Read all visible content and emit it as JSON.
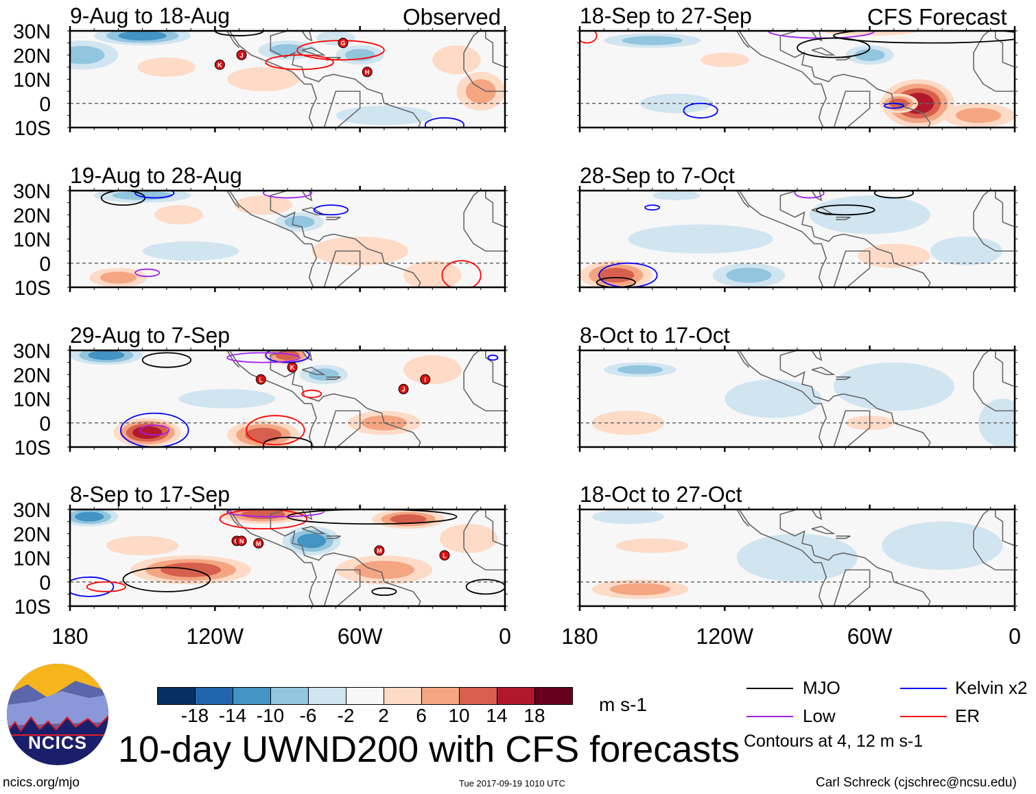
{
  "title": "10-day UWND200 with CFS forecasts",
  "left_header": "Observed",
  "right_header": "CFS Forecast",
  "site": "ncics.org/mjo",
  "timestamp": "Tue 2017-09-19 1010 UTC",
  "author": "Carl Schreck (cjschrec@ncsu.edu)",
  "logo_text": "NCICS",
  "units": "m s-1",
  "contour_note": "Contours at 4, 12 m s-1",
  "legend": [
    {
      "label": "MJO",
      "color": "#000000"
    },
    {
      "label": "Kelvin x2",
      "color": "#0000ff"
    },
    {
      "label": "Low",
      "color": "#a020f0"
    },
    {
      "label": "ER",
      "color": "#ff0000"
    }
  ],
  "colorbar": {
    "colors": [
      "#053061",
      "#2166ac",
      "#4393c3",
      "#92c5de",
      "#d1e5f0",
      "#f7f7f7",
      "#fddbc7",
      "#f4a582",
      "#d6604d",
      "#b2182b",
      "#67001f"
    ],
    "ticks": [
      "-18",
      "-14",
      "-10",
      "-6",
      "-2",
      "2",
      "6",
      "10",
      "14",
      "18"
    ]
  },
  "chart_data": {
    "type": "heatmap",
    "variable": "200-hPa zonal wind anomaly",
    "lon_ticks": [
      "180",
      "120W",
      "60W",
      "0"
    ],
    "lat_ticks": [
      "30N",
      "20N",
      "10N",
      "0",
      "10S"
    ],
    "lon_range": [
      -180,
      0
    ],
    "lat_range": [
      -10,
      30
    ],
    "panels": [
      {
        "title": "9-Aug to 18-Aug",
        "side": "left",
        "anoms": [
          [
            -150,
            28,
            -12,
            20,
            4
          ],
          [
            -175,
            20,
            -6,
            15,
            6
          ],
          [
            -90,
            22,
            -6,
            12,
            4
          ],
          [
            -60,
            20,
            -6,
            10,
            4
          ],
          [
            -140,
            15,
            4,
            12,
            4
          ],
          [
            -100,
            10,
            3,
            15,
            5
          ],
          [
            -10,
            5,
            8,
            10,
            8
          ],
          [
            -50,
            -5,
            -4,
            20,
            4
          ],
          [
            -20,
            18,
            3,
            10,
            6
          ],
          [
            -70,
            27,
            -4,
            8,
            3
          ]
        ],
        "contours": [
          [
            -68,
            22,
            18,
            4,
            "ER"
          ],
          [
            -85,
            17,
            14,
            3,
            "ER"
          ],
          [
            -110,
            30,
            10,
            2,
            "MJO"
          ],
          [
            -25,
            -9,
            8,
            3,
            "Kelvin"
          ]
        ],
        "storms": [
          [
            "G",
            -67,
            25
          ],
          [
            "J",
            -109,
            20
          ],
          [
            "K",
            -118,
            16
          ],
          [
            "H",
            -57,
            13
          ]
        ]
      },
      {
        "title": "19-Aug to 28-Aug",
        "side": "left",
        "anoms": [
          [
            -150,
            28,
            -8,
            20,
            3
          ],
          [
            -135,
            20,
            5,
            10,
            4
          ],
          [
            -100,
            24,
            4,
            12,
            4
          ],
          [
            -85,
            17,
            -6,
            10,
            4
          ],
          [
            -160,
            -6,
            6,
            12,
            4
          ],
          [
            -60,
            5,
            3,
            20,
            6
          ],
          [
            -30,
            -5,
            5,
            12,
            6
          ],
          [
            -130,
            5,
            -4,
            20,
            4
          ]
        ],
        "contours": [
          [
            -158,
            27,
            9,
            3,
            "MJO"
          ],
          [
            -145,
            29,
            8,
            2,
            "Kelvin"
          ],
          [
            -90,
            29,
            10,
            2,
            "Low"
          ],
          [
            -72,
            22,
            7,
            2,
            "Kelvin"
          ],
          [
            -148,
            -4,
            5,
            1.5,
            "Low"
          ],
          [
            -18,
            -5,
            8,
            6,
            "ER"
          ]
        ],
        "storms": []
      },
      {
        "title": "29-Aug to 7-Sep",
        "side": "left",
        "anoms": [
          [
            -165,
            28,
            -10,
            15,
            4
          ],
          [
            -90,
            28,
            10,
            10,
            4
          ],
          [
            -75,
            20,
            -8,
            10,
            4
          ],
          [
            -148,
            -4,
            14,
            14,
            6
          ],
          [
            -100,
            -5,
            12,
            15,
            6
          ],
          [
            -50,
            0,
            8,
            15,
            5
          ],
          [
            -30,
            22,
            3,
            12,
            6
          ],
          [
            -115,
            10,
            -4,
            20,
            4
          ]
        ],
        "contours": [
          [
            -145,
            -3,
            14,
            7,
            "Kelvin"
          ],
          [
            -145,
            -3,
            6,
            2,
            "Low"
          ],
          [
            -95,
            -3,
            12,
            6,
            "ER"
          ],
          [
            -90,
            -9,
            10,
            3,
            "MJO"
          ],
          [
            -140,
            26,
            10,
            3,
            "MJO"
          ],
          [
            -90,
            28,
            9,
            3,
            "Kelvin"
          ],
          [
            -100,
            27,
            15,
            2,
            "Low"
          ],
          [
            -80,
            12,
            4,
            1.5,
            "ER"
          ],
          [
            -5,
            27,
            2,
            1,
            "Kelvin"
          ]
        ],
        "storms": [
          [
            "K",
            -88,
            23
          ],
          [
            "L",
            -101,
            18
          ],
          [
            "J",
            -42,
            14
          ],
          [
            "I",
            -33,
            18
          ]
        ]
      },
      {
        "title": "8-Sep to 17-Sep",
        "side": "left",
        "anoms": [
          [
            -172,
            27,
            -12,
            12,
            4
          ],
          [
            -130,
            5,
            12,
            25,
            6
          ],
          [
            -100,
            28,
            10,
            18,
            4
          ],
          [
            -40,
            26,
            12,
            15,
            4
          ],
          [
            -80,
            17,
            -10,
            12,
            6
          ],
          [
            -50,
            5,
            6,
            20,
            6
          ],
          [
            -150,
            15,
            4,
            15,
            4
          ],
          [
            -15,
            18,
            4,
            12,
            6
          ]
        ],
        "contours": [
          [
            -140,
            1,
            18,
            5,
            "MJO"
          ],
          [
            -172,
            -2,
            10,
            4,
            "Kelvin"
          ],
          [
            -165,
            -2,
            8,
            2,
            "ER"
          ],
          [
            -100,
            26,
            18,
            4,
            "ER"
          ],
          [
            -95,
            29,
            20,
            2,
            "Low"
          ],
          [
            -55,
            27,
            35,
            3,
            "MJO"
          ],
          [
            -8,
            -2,
            8,
            3,
            "MJO"
          ],
          [
            -50,
            -4,
            5,
            1.5,
            "MJO"
          ]
        ],
        "storms": [
          [
            "O",
            -111,
            17
          ],
          [
            "N",
            -109,
            17
          ],
          [
            "M",
            -102,
            16
          ],
          [
            "M",
            -52,
            13
          ],
          [
            "L",
            -25,
            11
          ]
        ]
      },
      {
        "title": "18-Sep to 27-Sep",
        "side": "right",
        "anoms": [
          [
            -150,
            26,
            -6,
            20,
            3
          ],
          [
            -40,
            0,
            14,
            15,
            10
          ],
          [
            -48,
            0,
            10,
            8,
            4
          ],
          [
            -60,
            20,
            -6,
            10,
            4
          ],
          [
            -140,
            0,
            -4,
            15,
            4
          ],
          [
            -120,
            18,
            3,
            10,
            3
          ],
          [
            -15,
            -5,
            8,
            15,
            5
          ],
          [
            -60,
            30,
            4,
            20,
            2
          ]
        ],
        "contours": [
          [
            -80,
            30,
            22,
            3,
            "Low"
          ],
          [
            -75,
            23,
            15,
            4,
            "MJO"
          ],
          [
            -35,
            28,
            40,
            3,
            "MJO"
          ],
          [
            -130,
            -3,
            7,
            3,
            "Kelvin"
          ],
          [
            -50,
            -1,
            4,
            1,
            "Kelvin"
          ],
          [
            -177,
            28,
            4,
            3,
            "ER"
          ]
        ],
        "storms": []
      },
      {
        "title": "28-Sep to 7-Oct",
        "side": "right",
        "anoms": [
          [
            -165,
            -5,
            10,
            15,
            6
          ],
          [
            -130,
            10,
            -4,
            30,
            6
          ],
          [
            -110,
            -5,
            -6,
            15,
            5
          ],
          [
            -60,
            20,
            -3,
            25,
            8
          ],
          [
            -50,
            3,
            4,
            15,
            5
          ],
          [
            -20,
            5,
            -3,
            15,
            6
          ],
          [
            -140,
            28,
            -4,
            10,
            2
          ]
        ],
        "contours": [
          [
            -160,
            -5,
            12,
            5,
            "Kelvin"
          ],
          [
            -165,
            -8,
            8,
            2,
            "MJO"
          ],
          [
            -70,
            22,
            12,
            2,
            "MJO"
          ],
          [
            -150,
            23,
            3,
            1,
            "Kelvin"
          ],
          [
            -85,
            29,
            6,
            2,
            "Low"
          ],
          [
            -50,
            29,
            8,
            2,
            "MJO"
          ]
        ],
        "storms": []
      },
      {
        "title": "8-Oct to 17-Oct",
        "side": "right",
        "anoms": [
          [
            -155,
            22,
            -6,
            15,
            3
          ],
          [
            -160,
            0,
            4,
            15,
            5
          ],
          [
            -100,
            10,
            -3,
            20,
            8
          ],
          [
            -50,
            15,
            -3,
            25,
            10
          ],
          [
            -60,
            0,
            3,
            10,
            3
          ],
          [
            -5,
            0,
            -3,
            10,
            10
          ]
        ],
        "contours": [],
        "storms": []
      },
      {
        "title": "18-Oct to 27-Oct",
        "side": "right",
        "anoms": [
          [
            -155,
            -3,
            7,
            20,
            4
          ],
          [
            -150,
            15,
            3,
            15,
            3
          ],
          [
            -90,
            10,
            -3,
            25,
            10
          ],
          [
            -30,
            15,
            -3,
            25,
            10
          ],
          [
            -160,
            27,
            -3,
            15,
            3
          ]
        ],
        "contours": [],
        "storms": []
      }
    ]
  }
}
